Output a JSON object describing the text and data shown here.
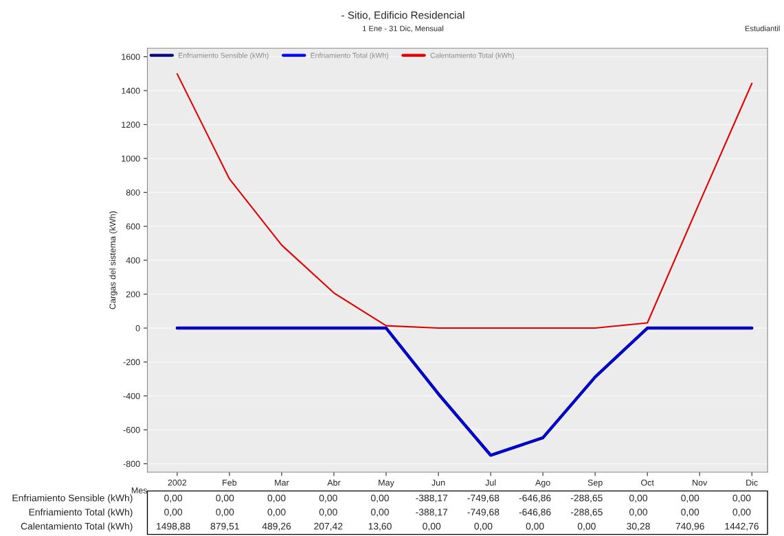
{
  "chart_data": {
    "type": "line",
    "title": "- Sitio, Edificio Residencial",
    "subtitle": "1 Ene - 31 Dic, Mensual",
    "xlabel": "Mes",
    "ylabel": "Cargas del sistema (kWh)",
    "annotations": [
      "Estudiantil"
    ],
    "categories": [
      "2002",
      "Feb",
      "Mar",
      "Abr",
      "May",
      "Jun",
      "Jul",
      "Ago",
      "Sep",
      "Oct",
      "Nov",
      "Dic"
    ],
    "series": [
      {
        "name": "Enfriamiento Sensible (kWh)",
        "color": "#000080",
        "values": [
          0,
          0,
          0,
          0,
          0,
          -388.17,
          -749.68,
          -646.86,
          -288.65,
          0,
          0,
          0
        ],
        "value_labels": [
          "0,00",
          "0,00",
          "0,00",
          "0,00",
          "0,00",
          "-388,17",
          "-749,68",
          "-646,86",
          "-288,65",
          "0,00",
          "0,00",
          "0,00"
        ]
      },
      {
        "name": "Enfriamiento Total (kWh)",
        "color": "#0000ff",
        "values": [
          0,
          0,
          0,
          0,
          0,
          -388.17,
          -749.68,
          -646.86,
          -288.65,
          0,
          0,
          0
        ],
        "value_labels": [
          "0,00",
          "0,00",
          "0,00",
          "0,00",
          "0,00",
          "-388,17",
          "-749,68",
          "-646,86",
          "-288,65",
          "0,00",
          "0,00",
          "0,00"
        ]
      },
      {
        "name": "Calentamiento Total (kWh)",
        "color": "#e00000",
        "values": [
          1498.88,
          879.51,
          489.26,
          207.42,
          13.6,
          0,
          0,
          0,
          0,
          30.28,
          740.96,
          1442.76
        ],
        "value_labels": [
          "1498,88",
          "879,51",
          "489,26",
          "207,42",
          "13,60",
          "0,00",
          "0,00",
          "0,00",
          "0,00",
          "30,28",
          "740,96",
          "1442,76"
        ]
      }
    ],
    "ylim": [
      -850,
      1650
    ],
    "yticks": [
      -800,
      -600,
      -400,
      -200,
      0,
      200,
      400,
      600,
      800,
      1000,
      1200,
      1400,
      1600
    ],
    "grid": "y",
    "legend": "top left",
    "marker": "none",
    "line_style": "solid"
  }
}
